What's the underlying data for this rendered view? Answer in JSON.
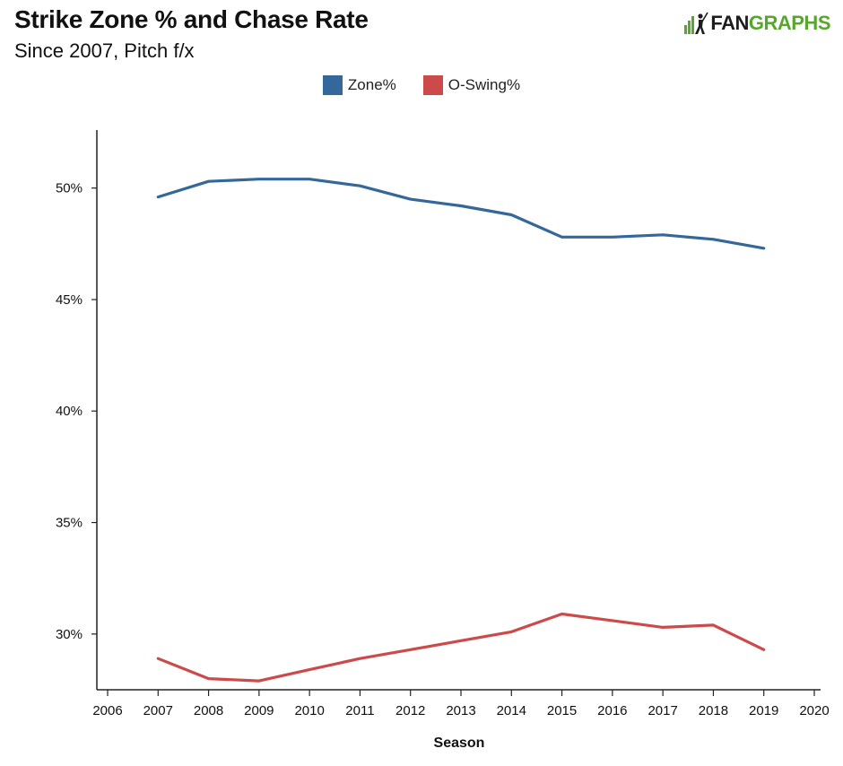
{
  "header": {
    "title": "Strike Zone % and Chase Rate",
    "subtitle": "Since 2007, Pitch f/x",
    "logo_text_left": "FAN",
    "logo_text_right": "GRAPHS"
  },
  "colors": {
    "zone": "#34679a",
    "oswing": "#cc4a4a",
    "axis": "#222222",
    "logo_green": "#58a62d"
  },
  "chart_data": {
    "type": "line",
    "title": "Strike Zone % and Chase Rate",
    "subtitle": "Since 2007, Pitch f/x",
    "xlabel": "Season",
    "ylabel": "",
    "x_ticks": [
      2006,
      2007,
      2008,
      2009,
      2010,
      2011,
      2012,
      2013,
      2014,
      2015,
      2016,
      2017,
      2018,
      2019,
      2020
    ],
    "xlim": [
      2006,
      2020
    ],
    "y_ticks": [
      30,
      35,
      40,
      45,
      50
    ],
    "y_tick_labels": [
      "30%",
      "35%",
      "40%",
      "45%",
      "50%"
    ],
    "ylim": [
      27.5,
      52.6
    ],
    "grid": false,
    "legend_position": "top-center",
    "x": [
      2007,
      2008,
      2009,
      2010,
      2011,
      2012,
      2013,
      2014,
      2015,
      2016,
      2017,
      2018,
      2019
    ],
    "series": [
      {
        "name": "Zone%",
        "color": "#34679a",
        "values": [
          49.6,
          50.3,
          50.4,
          50.4,
          50.1,
          49.5,
          49.2,
          48.8,
          47.8,
          47.8,
          47.9,
          47.7,
          47.3
        ]
      },
      {
        "name": "O-Swing%",
        "color": "#cc4a4a",
        "values": [
          28.9,
          28.0,
          27.9,
          28.4,
          28.9,
          29.3,
          29.7,
          30.1,
          30.9,
          30.6,
          30.3,
          30.4,
          29.3
        ]
      }
    ]
  }
}
